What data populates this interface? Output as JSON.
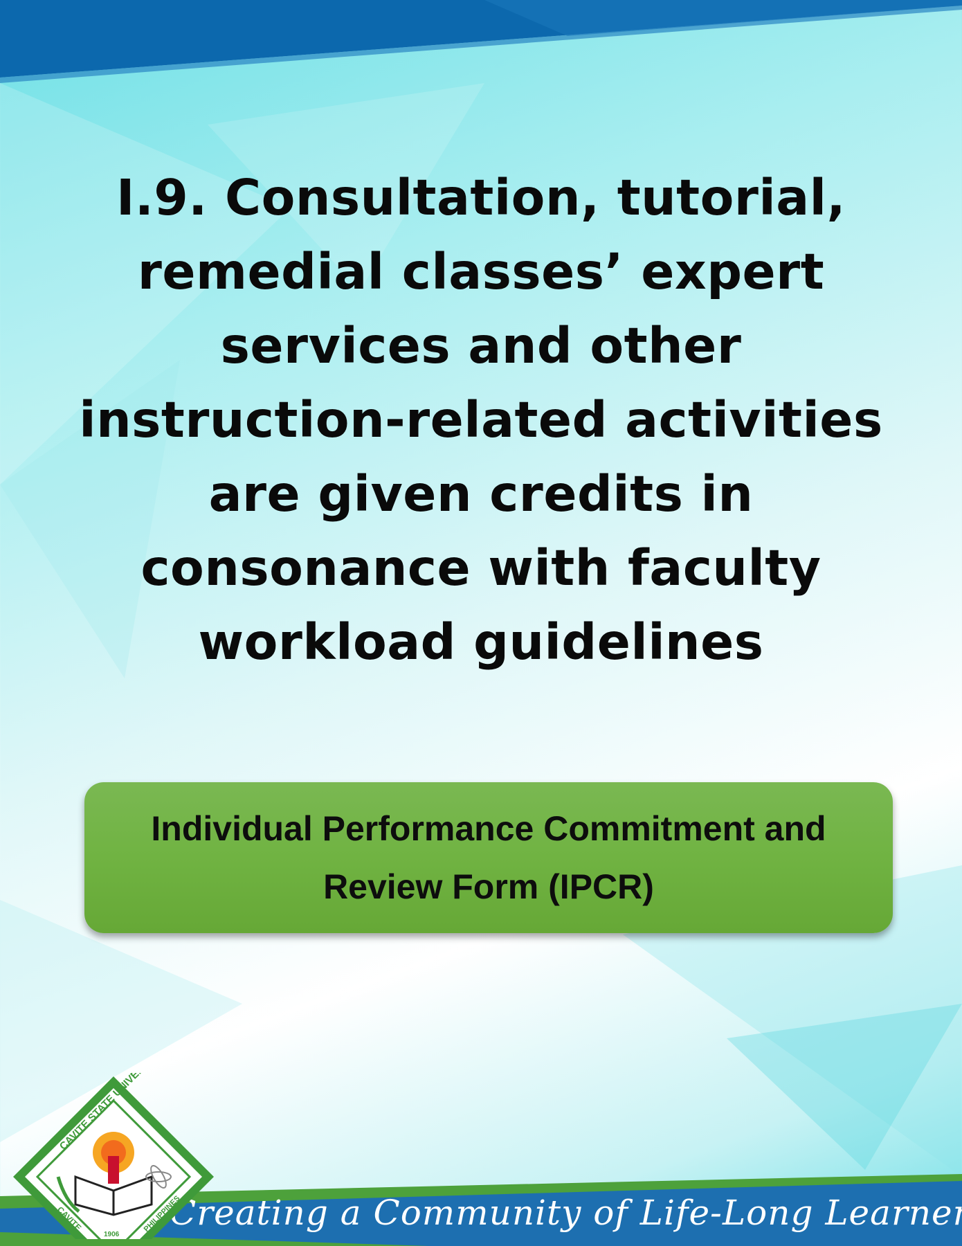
{
  "heading": {
    "text": "I.9. Consultation, tutorial, remedial classes’ expert services and other instruction-related activities are given credits in consonance with faculty workload guidelines"
  },
  "link_button": {
    "label": "Individual Performance Commitment and Review Form (IPCR)"
  },
  "footer": {
    "tagline": "Creating a Community of Life-Long Learners"
  },
  "logo": {
    "name": "CAVITE STATE UNIVERSITY",
    "place": "CAVITE",
    "country": "PHILIPPINES",
    "year": "1906"
  },
  "colors": {
    "band_blue": "#0c68ad",
    "button_green": "#70b342",
    "footer_green": "#4da13b",
    "text": "#0a0a0a"
  }
}
